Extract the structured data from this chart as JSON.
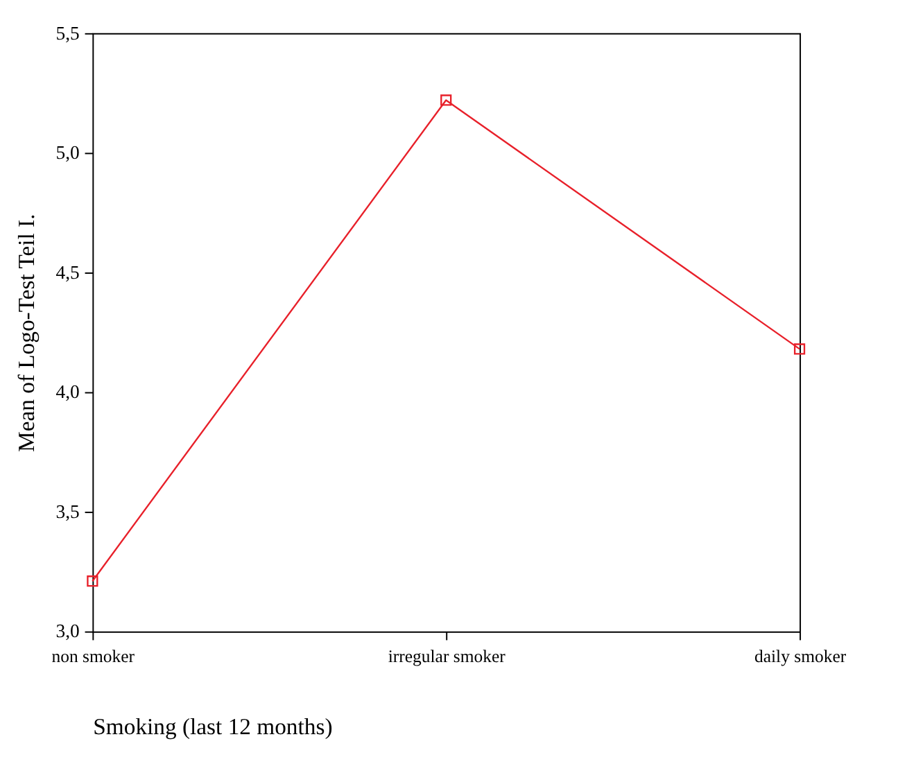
{
  "chart_data": {
    "type": "line",
    "xlabel": "Smoking (last 12 months)",
    "ylabel": "Mean of Logo-Test Teil I.",
    "categories": [
      "non smoker",
      "irregular smoker",
      "daily smoker"
    ],
    "series": [
      {
        "color": "#e8202a",
        "values": [
          3.21,
          5.22,
          4.18
        ]
      }
    ],
    "ylim": [
      3.0,
      5.5
    ],
    "yticks": [
      {
        "value": 3.0,
        "label": "3,0"
      },
      {
        "value": 3.5,
        "label": "3,5"
      },
      {
        "value": 4.0,
        "label": "4,0"
      },
      {
        "value": 4.5,
        "label": "4,5"
      },
      {
        "value": 5.0,
        "label": "5,0"
      },
      {
        "value": 5.5,
        "label": "5,5"
      }
    ],
    "marker": "square",
    "line_style": "solid",
    "grid": false
  }
}
